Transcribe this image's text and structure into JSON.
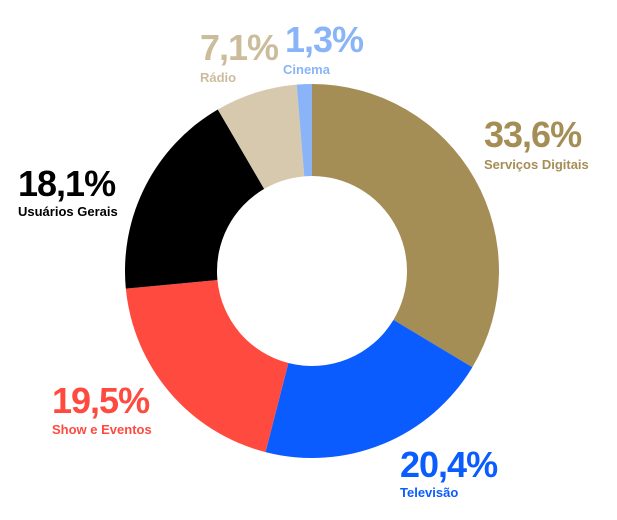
{
  "chart_data": {
    "type": "donut",
    "categories": [
      "Serviços Digitais",
      "Televisão",
      "Show e Eventos",
      "Usuários Gerais",
      "Rádio",
      "Cinema"
    ],
    "values": [
      33.6,
      20.4,
      19.5,
      18.1,
      7.1,
      1.3
    ],
    "value_labels": [
      "33,6%",
      "20,4%",
      "19,5%",
      "18,1%",
      "7,1%",
      "1,3%"
    ],
    "colors": [
      "#a58e55",
      "#0a5cff",
      "#ff4a3f",
      "#000000",
      "#d6c9ad",
      "#8ab4f8"
    ]
  }
}
